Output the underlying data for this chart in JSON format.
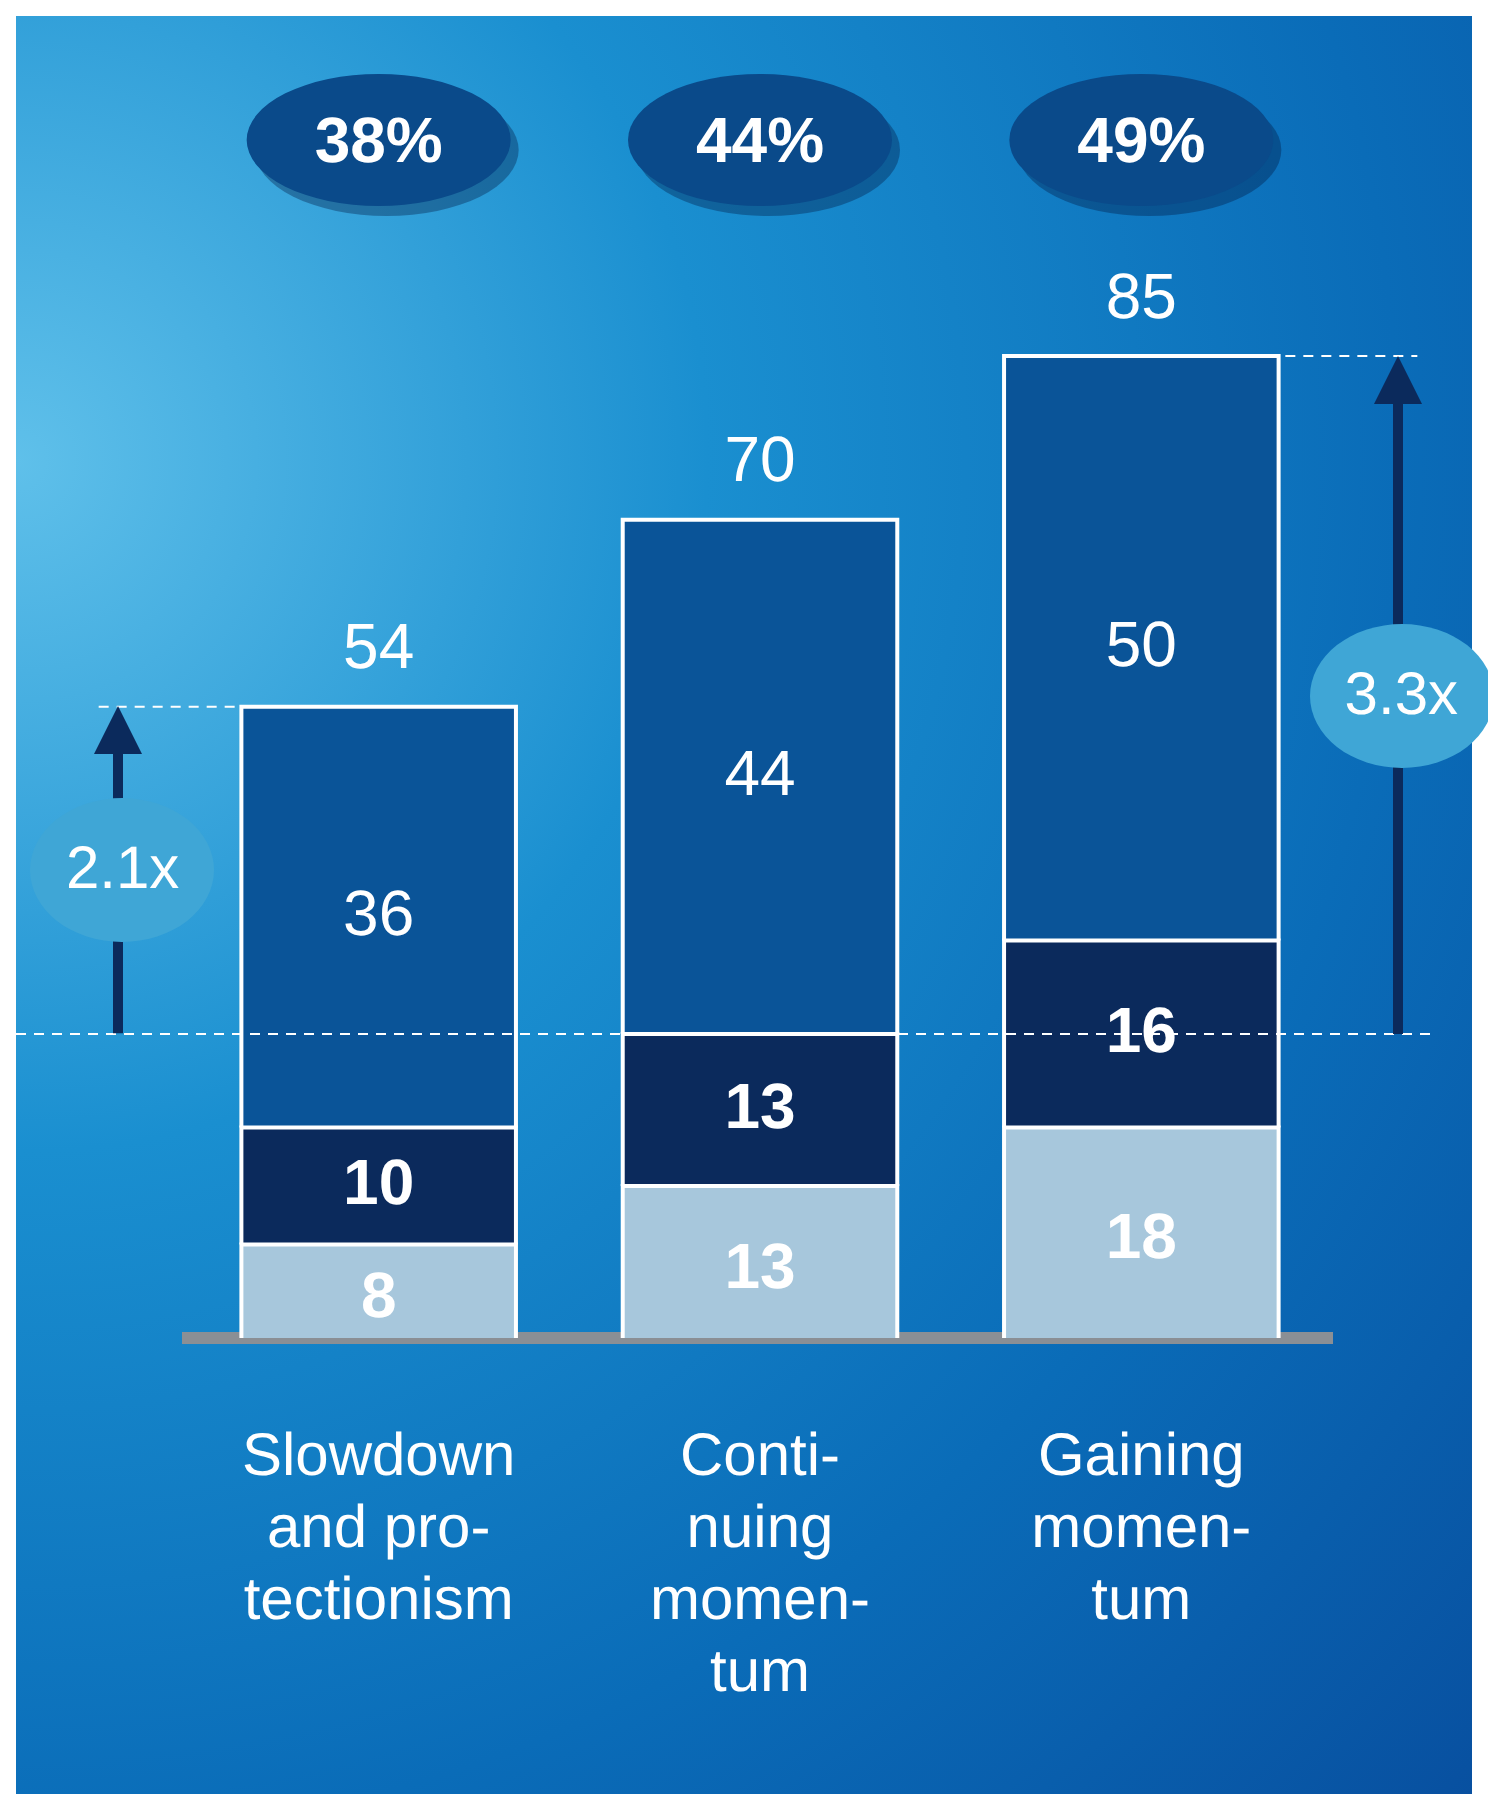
{
  "chart_data": {
    "type": "bar",
    "stacked": true,
    "data_labels": true,
    "categories": [
      "Slowdown\nand pro-\ntectionism",
      "Conti-\nnuing\nmomen-\ntum",
      "Gaining\nmomen-\ntum"
    ],
    "series": [
      {
        "color": "#a7c7dc",
        "values": [
          8,
          13,
          18
        ]
      },
      {
        "color": "#0b2a5c",
        "values": [
          10,
          13,
          16
        ]
      },
      {
        "color": "#0a5498",
        "values": [
          36,
          44,
          50
        ]
      }
    ],
    "totals": [
      "54",
      "70",
      "85"
    ],
    "ref_lines": [
      {
        "axis": "y",
        "value": 26,
        "color": "#ffffff",
        "line_style": "dashed"
      }
    ],
    "annotations": [
      "38%",
      "44%",
      "49%",
      "2.1x",
      "3.3x"
    ],
    "legend": false,
    "grid": false
  }
}
